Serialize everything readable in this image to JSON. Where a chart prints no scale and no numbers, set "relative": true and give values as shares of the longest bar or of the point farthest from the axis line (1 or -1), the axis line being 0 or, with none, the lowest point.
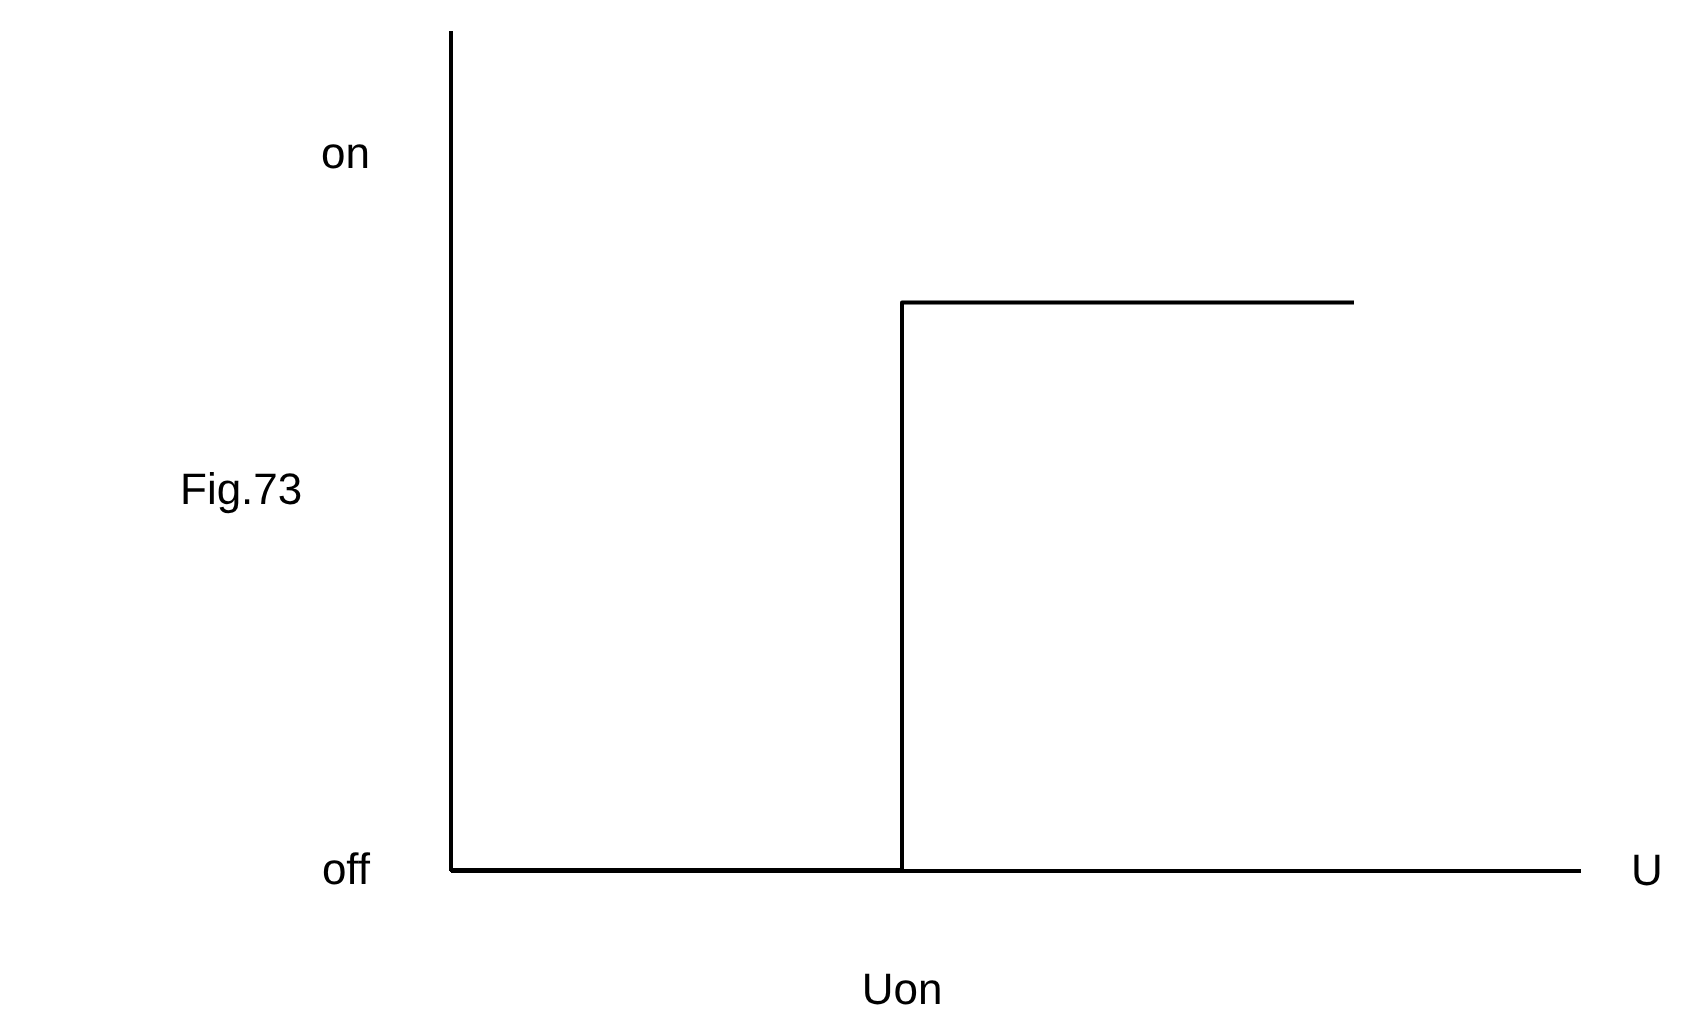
{
  "chart_data": {
    "type": "step",
    "xlabel": "U",
    "categories": [
      null,
      null,
      null
    ],
    "series": [
      {
        "color": "#000000",
        "values": [
          0,
          1,
          1
        ]
      }
    ],
    "relative": true,
    "marker": "none",
    "line_style": "solid",
    "annotations": [
      "on",
      "off",
      "Fig.73",
      "Uon"
    ]
  }
}
